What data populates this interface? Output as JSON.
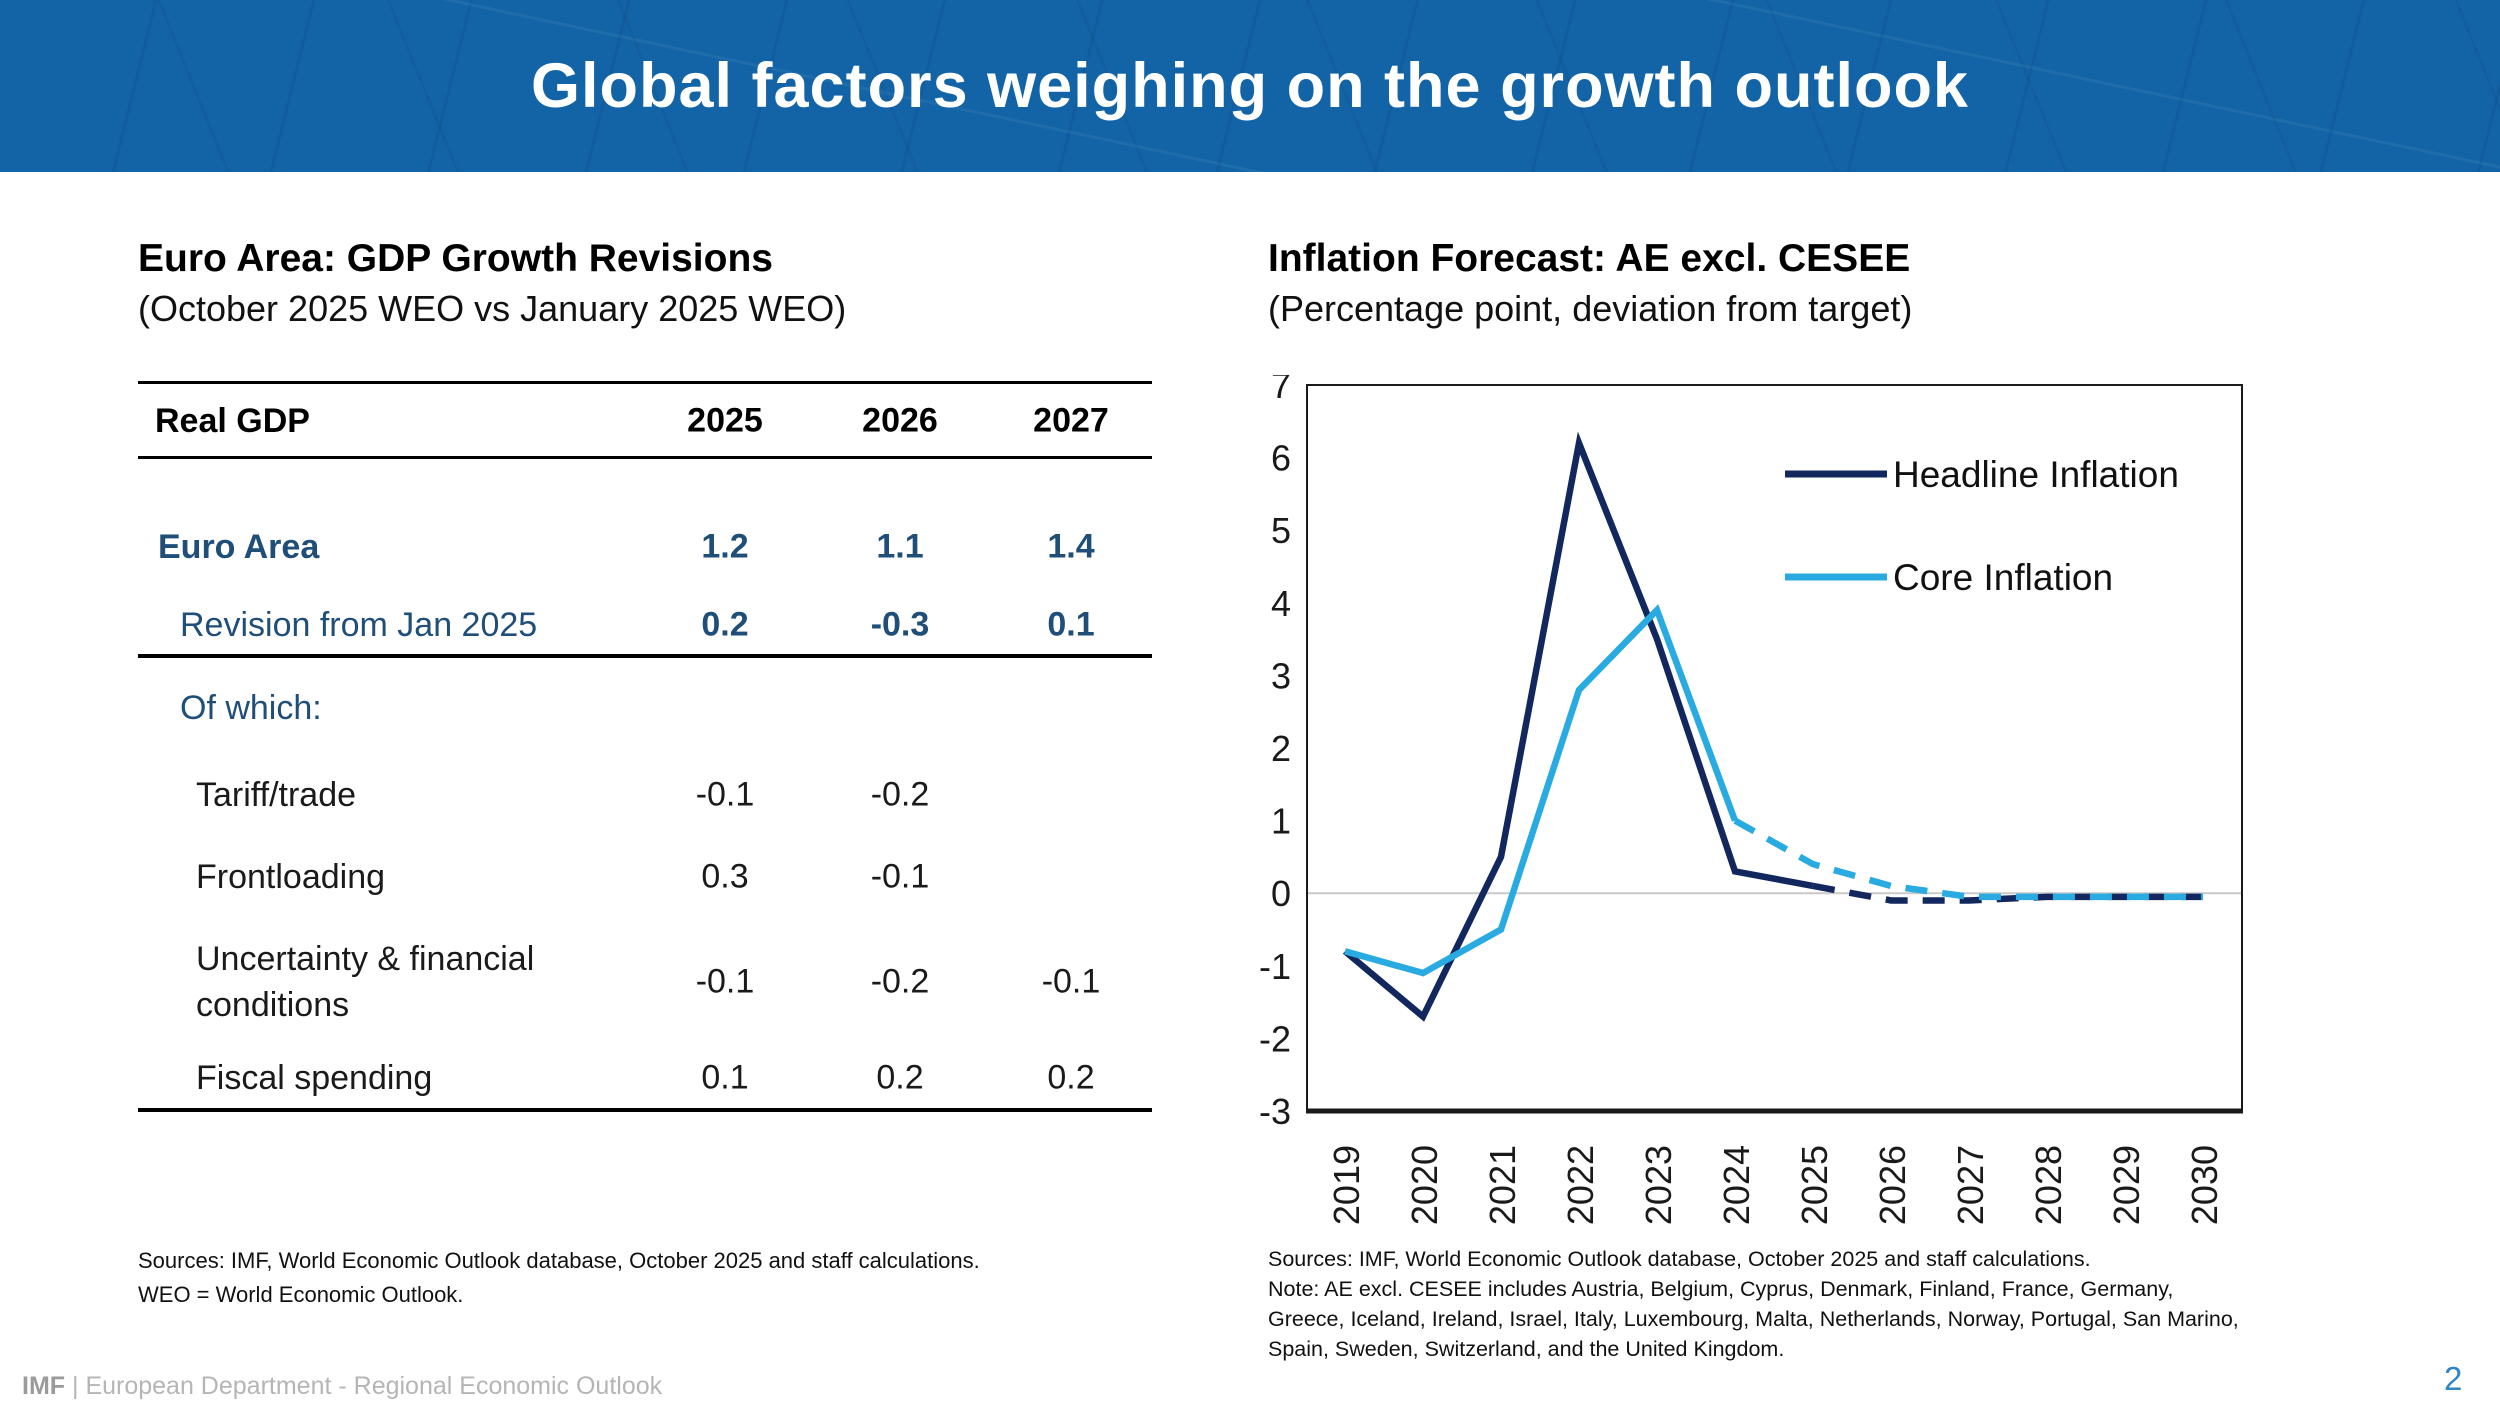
{
  "header": {
    "title": "Global factors weighing on the growth outlook",
    "background_color": "#1364a7"
  },
  "left_panel": {
    "title": "Euro Area: GDP Growth Revisions",
    "subtitle": "(October 2025 WEO vs January 2025 WEO)",
    "table": {
      "header": {
        "label": "Real GDP",
        "years": [
          "2025",
          "2026",
          "2027"
        ]
      },
      "rows": [
        {
          "label": "Euro Area",
          "values": [
            "1.2",
            "1.1",
            "1.4"
          ]
        },
        {
          "label": "Revision from Jan 2025",
          "values": [
            "0.2",
            "-0.3",
            "0.1"
          ]
        },
        {
          "label": "Of which:",
          "values": [
            "",
            "",
            ""
          ]
        },
        {
          "label": "Tariff/trade",
          "values": [
            "-0.1",
            "-0.2",
            ""
          ]
        },
        {
          "label": "Frontloading",
          "values": [
            "0.3",
            "-0.1",
            ""
          ]
        },
        {
          "label": "Uncertainty & financial conditions",
          "values": [
            "-0.1",
            "-0.2",
            "-0.1"
          ]
        },
        {
          "label": "Fiscal spending",
          "values": [
            "0.1",
            "0.2",
            "0.2"
          ]
        }
      ]
    },
    "footnote_lines": [
      "Sources: IMF, World Economic Outlook database, October 2025 and staff calculations.",
      "WEO = World Economic Outlook."
    ]
  },
  "right_panel": {
    "footnote_lines": [
      "Sources: IMF, World Economic Outlook database, October 2025 and staff calculations.",
      "Note: AE excl. CESEE includes Austria, Belgium, Cyprus, Denmark, Finland, France, Germany,",
      "Greece, Iceland, Ireland, Israel, Italy, Luxembourg, Malta, Netherlands, Norway, Portugal, San Marino,",
      "Spain, Sweden, Switzerland, and the United Kingdom."
    ]
  },
  "chart_data": {
    "type": "line",
    "title": "Inflation Forecast: AE excl. CESEE",
    "subtitle": "(Percentage point, deviation from target)",
    "x": [
      2019,
      2020,
      2021,
      2022,
      2023,
      2024,
      2025,
      2026,
      2027,
      2028,
      2029,
      2030
    ],
    "series": [
      {
        "name": "Headline Inflation",
        "color": "#12275e",
        "values": [
          -0.8,
          -1.7,
          0.5,
          6.2,
          3.5,
          0.3,
          0.1,
          -0.1,
          -0.1,
          -0.05,
          -0.05,
          -0.05
        ],
        "solid_until_index": 6
      },
      {
        "name": "Core Inflation",
        "color": "#29abe2",
        "values": [
          -0.8,
          -1.1,
          -0.5,
          2.8,
          3.9,
          1.0,
          0.4,
          0.1,
          -0.05,
          -0.05,
          -0.05,
          -0.05
        ],
        "solid_until_index": 5
      }
    ],
    "ylim": [
      -3,
      7
    ],
    "yticks": [
      7,
      6,
      5,
      4,
      3,
      2,
      1,
      0,
      -1,
      -2,
      -3
    ],
    "gridline_at": 0,
    "grid": "zero-line-only",
    "legend_position": "top-right",
    "dashed_meaning": "forecast"
  },
  "footer": {
    "brand": "IMF",
    "rest": "| European Department - Regional Economic Outlook",
    "page_number": "2"
  },
  "colors": {
    "table_blue": "#1F4E79",
    "navy_line": "#12275e",
    "cyan_line": "#29abe2",
    "banner_blue": "#1364a7",
    "footer_gray": "#b5b5b5",
    "page_number_blue": "#2E86C6"
  }
}
